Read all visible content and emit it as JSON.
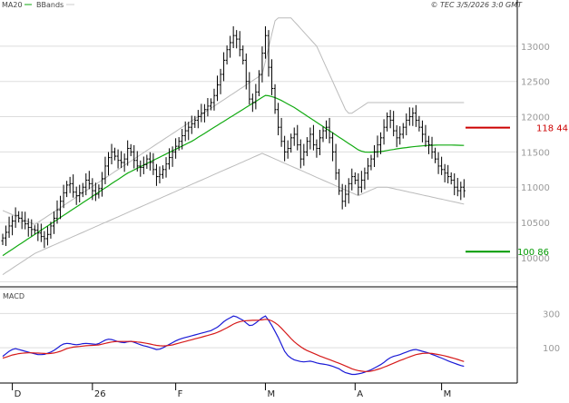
{
  "legend": {
    "ma_label": "MA20",
    "bb_label": "BBands",
    "copyright": "© TEC 3/5/2026 3:0 GMT"
  },
  "macd_label": "MACD",
  "colors": {
    "price": "#000000",
    "ma20": "#11aa11",
    "bbands": "#bbbbbb",
    "resistance": "#cc0000",
    "support": "#009900",
    "macd": "#1a1ad6",
    "signal": "#d61a1a",
    "grid": "#dddddd",
    "ma_legend": "#11aa11",
    "bb_legend": "#cccccc"
  },
  "chart_data": [
    {
      "type": "bar",
      "subtype": "ohlc",
      "ylim": [
        9600,
        13500
      ],
      "y_ticks": [
        10000,
        10500,
        11000,
        11500,
        12000,
        12500,
        13000
      ],
      "y_tick_labels": [
        "10000",
        "10500",
        "11000",
        "11500",
        "12000",
        "12500",
        "13000"
      ],
      "x_tick_labels": [
        "D",
        "26",
        "F",
        "M",
        "A",
        "M"
      ],
      "x_tick_index": [
        3,
        28,
        54,
        82,
        110,
        137
      ],
      "n_bars": 145,
      "closes": [
        10280,
        10360,
        10450,
        10520,
        10600,
        10560,
        10520,
        10480,
        10430,
        10400,
        10390,
        10350,
        10300,
        10270,
        10330,
        10450,
        10560,
        10680,
        10800,
        10920,
        11030,
        11050,
        10930,
        10880,
        10920,
        11000,
        11100,
        11050,
        10950,
        10900,
        10980,
        11120,
        11300,
        11420,
        11500,
        11440,
        11380,
        11350,
        11400,
        11550,
        11500,
        11380,
        11300,
        11280,
        11320,
        11400,
        11350,
        11250,
        11150,
        11180,
        11250,
        11330,
        11420,
        11500,
        11580,
        11650,
        11730,
        11800,
        11850,
        11900,
        11950,
        12000,
        12050,
        12100,
        12150,
        12200,
        12300,
        12450,
        12600,
        12800,
        12950,
        13050,
        13150,
        13100,
        12950,
        12800,
        12500,
        12250,
        12200,
        12350,
        12600,
        12900,
        13150,
        12700,
        12400,
        12100,
        11850,
        11650,
        11500,
        11550,
        11700,
        11750,
        11600,
        11400,
        11500,
        11650,
        11750,
        11600,
        11550,
        11700,
        11800,
        11850,
        11700,
        11500,
        11200,
        10950,
        10800,
        10900,
        11050,
        11150,
        11100,
        11000,
        11100,
        11200,
        11300,
        11400,
        11500,
        11600,
        11700,
        11850,
        12000,
        11950,
        11800,
        11700,
        11750,
        11850,
        11950,
        12000,
        12050,
        11950,
        11850,
        11750,
        11650,
        11600,
        11500,
        11400,
        11300,
        11250,
        11200,
        11150,
        11100,
        11000,
        10950,
        11000,
        10950
      ],
      "ma20": [
        10030,
        10060,
        10090,
        10120,
        10150,
        10180,
        10210,
        10240,
        10270,
        10300,
        10330,
        10360,
        10390,
        10420,
        10450,
        10480,
        10510,
        10540,
        10570,
        10600,
        10630,
        10660,
        10690,
        10720,
        10750,
        10780,
        10810,
        10840,
        10870,
        10900,
        10930,
        10960,
        10990,
        11020,
        11050,
        11080,
        11110,
        11140,
        11170,
        11200,
        11222,
        11245,
        11268,
        11290,
        11313,
        11335,
        11358,
        11380,
        11403,
        11425,
        11448,
        11470,
        11493,
        11515,
        11538,
        11560,
        11583,
        11605,
        11628,
        11650,
        11678,
        11707,
        11735,
        11763,
        11792,
        11820,
        11848,
        11877,
        11905,
        11933,
        11962,
        11990,
        12018,
        12047,
        12075,
        12103,
        12132,
        12160,
        12188,
        12217,
        12245,
        12273,
        12302,
        12297,
        12285,
        12270,
        12250,
        12230,
        12205,
        12180,
        12155,
        12130,
        12100,
        12070,
        12040,
        12010,
        11980,
        11950,
        11920,
        11890,
        11860,
        11830,
        11800,
        11770,
        11740,
        11710,
        11680,
        11650,
        11620,
        11590,
        11560,
        11530,
        11510,
        11498,
        11496,
        11497,
        11498,
        11500,
        11505,
        11512,
        11520,
        11528,
        11535,
        11543,
        11550,
        11556,
        11562,
        11568,
        11573,
        11578,
        11582,
        11586,
        11590,
        11592,
        11594,
        11596,
        11597,
        11598,
        11598,
        11598,
        11597,
        11596,
        11595,
        11594,
        11593
      ],
      "bb_upper": [
        10670,
        10650,
        10630,
        10610,
        10590,
        10570,
        10550,
        10530,
        10510,
        10490,
        10470,
        10500,
        10530,
        10560,
        10590,
        10620,
        10650,
        10680,
        10710,
        10740,
        10770,
        10800,
        10830,
        10860,
        10890,
        10920,
        10950,
        10980,
        11010,
        11040,
        11070,
        11100,
        11130,
        11160,
        11190,
        11220,
        11250,
        11280,
        11310,
        11340,
        11370,
        11400,
        11430,
        11460,
        11490,
        11520,
        11550,
        11580,
        11610,
        11640,
        11670,
        11700,
        11730,
        11760,
        11790,
        11820,
        11850,
        11880,
        11910,
        11940,
        11970,
        12000,
        12030,
        12060,
        12090,
        12120,
        12150,
        12180,
        12210,
        12240,
        12270,
        12300,
        12330,
        12360,
        12390,
        12420,
        12450,
        12480,
        12510,
        12540,
        12570,
        12600,
        12790,
        12980,
        13170,
        13360,
        13400,
        13400,
        13400,
        13400,
        13400,
        13350,
        13300,
        13250,
        13200,
        13150,
        13100,
        13050,
        13000,
        12900,
        12800,
        12700,
        12600,
        12500,
        12400,
        12300,
        12200,
        12100,
        12050,
        12050,
        12080,
        12110,
        12140,
        12170,
        12200,
        12200,
        12200,
        12200,
        12200,
        12200,
        12200,
        12200,
        12200,
        12200,
        12200,
        12200,
        12200,
        12200,
        12200,
        12200,
        12200,
        12200,
        12200,
        12200,
        12200,
        12200,
        12200,
        12200,
        12200,
        12200,
        12200,
        12200,
        12200,
        12200,
        12200
      ],
      "bb_lower": [
        9760,
        9790,
        9820,
        9850,
        9880,
        9910,
        9940,
        9970,
        10000,
        10030,
        10060,
        10080,
        10100,
        10120,
        10140,
        10160,
        10180,
        10200,
        10220,
        10240,
        10260,
        10280,
        10300,
        10320,
        10340,
        10360,
        10380,
        10400,
        10420,
        10440,
        10460,
        10480,
        10500,
        10520,
        10540,
        10560,
        10580,
        10600,
        10620,
        10640,
        10660,
        10680,
        10700,
        10720,
        10740,
        10760,
        10780,
        10800,
        10820,
        10840,
        10860,
        10880,
        10900,
        10920,
        10940,
        10960,
        10980,
        11000,
        11020,
        11040,
        11060,
        11080,
        11100,
        11120,
        11140,
        11160,
        11180,
        11200,
        11220,
        11240,
        11260,
        11280,
        11300,
        11320,
        11340,
        11360,
        11380,
        11400,
        11420,
        11440,
        11460,
        11480,
        11460,
        11440,
        11420,
        11400,
        11380,
        11360,
        11340,
        11320,
        11300,
        11280,
        11260,
        11240,
        11220,
        11200,
        11180,
        11160,
        11140,
        11120,
        11100,
        11080,
        11060,
        11040,
        11020,
        11000,
        10980,
        10960,
        10940,
        10920,
        10900,
        10880,
        10900,
        10920,
        10940,
        10960,
        10980,
        11000,
        11000,
        11000,
        11000,
        10990,
        10980,
        10970,
        10960,
        10950,
        10940,
        10930,
        10920,
        10910,
        10900,
        10890,
        10880,
        10870,
        10860,
        10850,
        10840,
        10830,
        10820,
        10810,
        10800,
        10790,
        10780,
        10770,
        10760
      ],
      "levels": [
        {
          "name": "resistance",
          "value": 11844,
          "label": "118 44"
        },
        {
          "name": "support",
          "value": 10086,
          "label": "100 86"
        }
      ]
    },
    {
      "type": "line",
      "title": "MACD",
      "ylim": [
        -100,
        450
      ],
      "y_ticks": [
        100,
        300
      ],
      "y_tick_labels": [
        "100",
        "300"
      ],
      "series": [
        {
          "name": "MACD",
          "values": [
            50,
            65,
            80,
            90,
            95,
            90,
            85,
            80,
            75,
            70,
            65,
            60,
            60,
            62,
            68,
            75,
            85,
            98,
            112,
            122,
            126,
            124,
            120,
            118,
            120,
            124,
            126,
            124,
            122,
            120,
            125,
            135,
            145,
            150,
            148,
            142,
            136,
            132,
            130,
            135,
            138,
            132,
            125,
            118,
            112,
            108,
            102,
            96,
            90,
            92,
            100,
            110,
            120,
            130,
            140,
            148,
            155,
            160,
            165,
            170,
            175,
            180,
            185,
            190,
            195,
            200,
            210,
            220,
            235,
            252,
            265,
            275,
            285,
            280,
            270,
            260,
            245,
            230,
            232,
            245,
            260,
            275,
            285,
            260,
            230,
            195,
            160,
            120,
            80,
            55,
            40,
            30,
            25,
            20,
            18,
            20,
            22,
            18,
            12,
            8,
            5,
            2,
            -2,
            -8,
            -15,
            -22,
            -35,
            -45,
            -50,
            -55,
            -55,
            -52,
            -48,
            -42,
            -35,
            -28,
            -18,
            -8,
            2,
            15,
            30,
            42,
            50,
            55,
            60,
            68,
            75,
            82,
            88,
            90,
            85,
            80,
            75,
            70,
            62,
            55,
            47,
            40,
            32,
            24,
            17,
            10,
            3,
            -3,
            -8
          ]
        },
        {
          "name": "Signal",
          "values": [
            40,
            45,
            52,
            58,
            62,
            66,
            68,
            70,
            71,
            71,
            70,
            69,
            68,
            67,
            66,
            67,
            70,
            74,
            80,
            87,
            95,
            100,
            104,
            106,
            108,
            110,
            112,
            113,
            114,
            115,
            117,
            121,
            126,
            130,
            134,
            136,
            137,
            137,
            137,
            137,
            137,
            136,
            134,
            132,
            129,
            126,
            122,
            118,
            114,
            112,
            111,
            112,
            114,
            117,
            122,
            127,
            132,
            137,
            142,
            147,
            152,
            157,
            162,
            167,
            172,
            177,
            183,
            190,
            198,
            207,
            217,
            227,
            238,
            246,
            252,
            256,
            258,
            259,
            260,
            260,
            261,
            263,
            266,
            264,
            257,
            246,
            232,
            214,
            194,
            174,
            154,
            136,
            120,
            106,
            94,
            84,
            76,
            68,
            60,
            52,
            45,
            38,
            31,
            24,
            17,
            10,
            2,
            -6,
            -14,
            -22,
            -28,
            -33,
            -36,
            -38,
            -38,
            -36,
            -32,
            -26,
            -20,
            -13,
            -6,
            2,
            10,
            18,
            26,
            33,
            40,
            47,
            54,
            60,
            64,
            67,
            68,
            68,
            67,
            64,
            61,
            57,
            53,
            48,
            43,
            38,
            32,
            26,
            20
          ]
        }
      ]
    }
  ]
}
